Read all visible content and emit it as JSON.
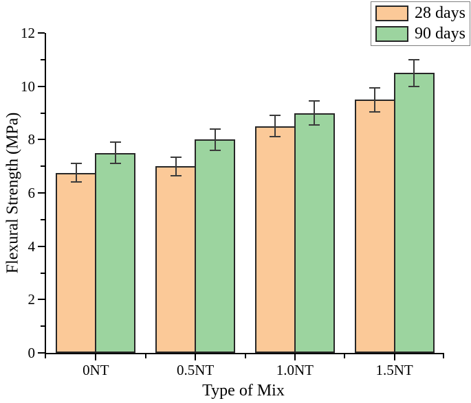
{
  "chart_data": {
    "type": "bar",
    "title": "",
    "xlabel": "Type of Mix",
    "ylabel": "Flexural Strength (MPa)",
    "categories": [
      "0NT",
      "0.5NT",
      "1.0NT",
      "1.5NT"
    ],
    "series": [
      {
        "name": "28 days",
        "color": "#FBC998",
        "values": [
          6.75,
          7.0,
          8.5,
          9.5
        ],
        "errors": [
          0.35,
          0.35,
          0.4,
          0.45
        ]
      },
      {
        "name": "90 days",
        "color": "#9CD49F",
        "values": [
          7.5,
          8.0,
          9.0,
          10.5
        ],
        "errors": [
          0.4,
          0.4,
          0.45,
          0.5
        ]
      }
    ],
    "ylim": [
      0,
      12
    ],
    "yticks_major": [
      0,
      2,
      4,
      6,
      8,
      10,
      12
    ],
    "yticks_minor": [
      1,
      3,
      5,
      7,
      9,
      11
    ],
    "legend_position": "top-right",
    "grid": false,
    "colors": {
      "bar_border": "#262626",
      "error_bar": "#3A3A3A",
      "axis": "#000000",
      "legend_border": "#7E7E7E"
    }
  }
}
